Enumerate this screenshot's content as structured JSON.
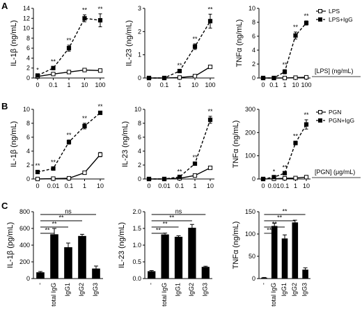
{
  "figure": {
    "panel_labels": [
      "A",
      "B",
      "C"
    ],
    "unit_labels": [
      "[LPS] (ng/mL)",
      "[PGN] (μg/mL)"
    ]
  },
  "chart_data": [
    {
      "id": "A1",
      "type": "line",
      "ylabel": "IL-1β (ng/mL)",
      "categories": [
        "0",
        "0.1",
        "1",
        "10",
        "100"
      ],
      "ylim": [
        0,
        14
      ],
      "yticks": [
        "0",
        "2",
        "4",
        "6",
        "8",
        "10",
        "12",
        "14"
      ],
      "series": [
        {
          "name": "LPS",
          "values": [
            0.3,
            0.8,
            1.2,
            1.6,
            1.5
          ],
          "err": [
            0.1,
            0.15,
            0.2,
            0.2,
            0.2
          ],
          "style": "open-solid"
        },
        {
          "name": "LPS+IgG",
          "values": [
            0.5,
            2.0,
            6.0,
            12.0,
            11.6
          ],
          "err": [
            0.1,
            0.3,
            0.6,
            0.7,
            1.3
          ],
          "style": "filled-dashed"
        }
      ],
      "stars": [
        "*",
        "**",
        "**",
        "**",
        "**"
      ]
    },
    {
      "id": "A2",
      "type": "line",
      "ylabel": "IL-23 (ng/mL)",
      "categories": [
        "0",
        "0.1",
        "1",
        "10",
        "100"
      ],
      "ylim": [
        0,
        3
      ],
      "yticks": [
        "0",
        "1",
        "2",
        "3"
      ],
      "series": [
        {
          "name": "LPS",
          "values": [
            0.0,
            0.0,
            0.02,
            0.08,
            0.48
          ],
          "err": [
            0,
            0,
            0,
            0.02,
            0.06
          ],
          "style": "open-solid"
        },
        {
          "name": "LPS+IgG",
          "values": [
            0.0,
            0.0,
            0.3,
            1.35,
            2.45
          ],
          "err": [
            0,
            0,
            0.03,
            0.12,
            0.3
          ],
          "style": "filled-dashed"
        }
      ],
      "stars": [
        "",
        "",
        "**",
        "**",
        "**"
      ]
    },
    {
      "id": "A3",
      "type": "line",
      "ylabel": "TNFα (ng/mL)",
      "categories": [
        "0",
        "0.1",
        "1",
        "10",
        "100"
      ],
      "ylim": [
        0,
        10
      ],
      "yticks": [
        "0",
        "2",
        "4",
        "6",
        "8",
        "10"
      ],
      "series": [
        {
          "name": "LPS",
          "values": [
            0.0,
            0.0,
            0.0,
            0.05,
            0.1
          ],
          "err": [
            0,
            0,
            0,
            0,
            0
          ],
          "style": "open-solid"
        },
        {
          "name": "LPS+IgG",
          "values": [
            0.0,
            0.0,
            0.9,
            6.1,
            7.9
          ],
          "err": [
            0,
            0,
            0.3,
            0.5,
            0.3
          ],
          "style": "filled-dashed"
        }
      ],
      "stars": [
        "",
        "",
        "**",
        "**",
        "**"
      ],
      "legend": {
        "position": "top-right",
        "entries": [
          "LPS",
          "LPS+IgG"
        ]
      }
    },
    {
      "id": "B1",
      "type": "line",
      "ylabel": "IL-1β (ng/mL)",
      "categories": [
        "0",
        "0.01",
        "0.1",
        "1",
        "10"
      ],
      "ylim": [
        0,
        10
      ],
      "yticks": [
        "0",
        "2",
        "4",
        "6",
        "8",
        "10"
      ],
      "series": [
        {
          "name": "PGN",
          "values": [
            0.0,
            0.05,
            0.1,
            0.9,
            3.5
          ],
          "err": [
            0,
            0,
            0,
            0.1,
            0.3
          ],
          "style": "open-solid"
        },
        {
          "name": "PGN+IgG",
          "values": [
            1.0,
            1.5,
            5.3,
            7.6,
            9.5
          ],
          "err": [
            0.2,
            0.2,
            0.3,
            0.4,
            0.2
          ],
          "style": "filled-dashed"
        }
      ],
      "stars": [
        "**",
        "**",
        "**",
        "**",
        "**"
      ]
    },
    {
      "id": "B2",
      "type": "line",
      "ylabel": "IL-23 (ng/mL)",
      "categories": [
        "0",
        "0.01",
        "0.1",
        "1",
        "10"
      ],
      "ylim": [
        0,
        10
      ],
      "yticks": [
        "0",
        "2",
        "4",
        "6",
        "8",
        "10"
      ],
      "series": [
        {
          "name": "PGN",
          "values": [
            0.0,
            0.0,
            0.1,
            0.5,
            1.6
          ],
          "err": [
            0,
            0,
            0,
            0.05,
            0.1
          ],
          "style": "open-solid"
        },
        {
          "name": "PGN+IgG",
          "values": [
            0.0,
            0.0,
            0.3,
            2.2,
            8.5
          ],
          "err": [
            0,
            0,
            0.05,
            0.2,
            0.5
          ],
          "style": "filled-dashed"
        }
      ],
      "stars": [
        "",
        "",
        "**",
        "**",
        "**"
      ]
    },
    {
      "id": "B3",
      "type": "line",
      "ylabel": "TNFα (ng/mL)",
      "categories": [
        "0",
        "0.01",
        "0.1",
        "1",
        "10"
      ],
      "ylim": [
        0,
        300
      ],
      "yticks": [
        "0",
        "100",
        "200",
        "300"
      ],
      "series": [
        {
          "name": "PGN",
          "values": [
            0,
            1,
            3,
            4,
            8
          ],
          "err": [
            0,
            0,
            1,
            1,
            2
          ],
          "style": "open-solid"
        },
        {
          "name": "PGN+IgG",
          "values": [
            0,
            8,
            25,
            155,
            235
          ],
          "err": [
            0,
            2,
            4,
            8,
            20
          ],
          "style": "filled-dashed"
        }
      ],
      "stars": [
        "",
        "*",
        "**",
        "**",
        "**"
      ],
      "legend": {
        "position": "top-right",
        "entries": [
          "PGN",
          "PGN+IgG"
        ]
      }
    },
    {
      "id": "C1",
      "type": "bar",
      "ylabel": "IL-1β (pg/mL)",
      "categories": [
        "-",
        "total IgG",
        "IgG1",
        "IgG2",
        "IgG3"
      ],
      "values": [
        75,
        530,
        375,
        510,
        120
      ],
      "err": [
        10,
        70,
        50,
        20,
        30
      ],
      "ylim": [
        0,
        800
      ],
      "yticks": [
        "0",
        "200",
        "400",
        "600",
        "800"
      ],
      "brackets": [
        {
          "from": "-",
          "to": "total IgG",
          "label": "**"
        },
        {
          "from": "-",
          "to": "IgG1",
          "label": "**"
        },
        {
          "from": "-",
          "to": "IgG2",
          "label": "**"
        },
        {
          "from": "-",
          "to": "IgG3",
          "label": "ns"
        }
      ]
    },
    {
      "id": "C2",
      "type": "bar",
      "ylabel": "IL-23 (ng/mL)",
      "categories": [
        "-",
        "total IgG",
        "IgG1",
        "IgG2",
        "IgG3"
      ],
      "values": [
        0.22,
        1.32,
        1.25,
        1.52,
        0.35
      ],
      "err": [
        0.02,
        0.04,
        0.03,
        0.1,
        0.02
      ],
      "ylim": [
        0,
        2.0
      ],
      "yticks": [
        "0.0",
        "0.5",
        "1.0",
        "1.5",
        "2.0"
      ],
      "brackets": [
        {
          "from": "-",
          "to": "total IgG",
          "label": "**"
        },
        {
          "from": "-",
          "to": "IgG1",
          "label": "**"
        },
        {
          "from": "-",
          "to": "IgG2",
          "label": "**"
        },
        {
          "from": "-",
          "to": "IgG3",
          "label": "ns"
        }
      ]
    },
    {
      "id": "C3",
      "type": "bar",
      "ylabel": "TNFα (ng/mL)",
      "categories": [
        "-",
        "total IgG",
        "IgG1",
        "IgG2",
        "IgG3"
      ],
      "values": [
        2,
        118,
        90,
        126,
        20
      ],
      "err": [
        0.5,
        6,
        8,
        5,
        4
      ],
      "ylim": [
        0,
        150
      ],
      "yticks": [
        "0",
        "50",
        "100",
        "150"
      ],
      "brackets": [
        {
          "from": "-",
          "to": "total IgG",
          "label": "**"
        },
        {
          "from": "-",
          "to": "IgG1",
          "label": "**"
        },
        {
          "from": "-",
          "to": "IgG2",
          "label": "**"
        },
        {
          "from": "-",
          "to": "IgG3",
          "label": "**"
        }
      ]
    }
  ]
}
